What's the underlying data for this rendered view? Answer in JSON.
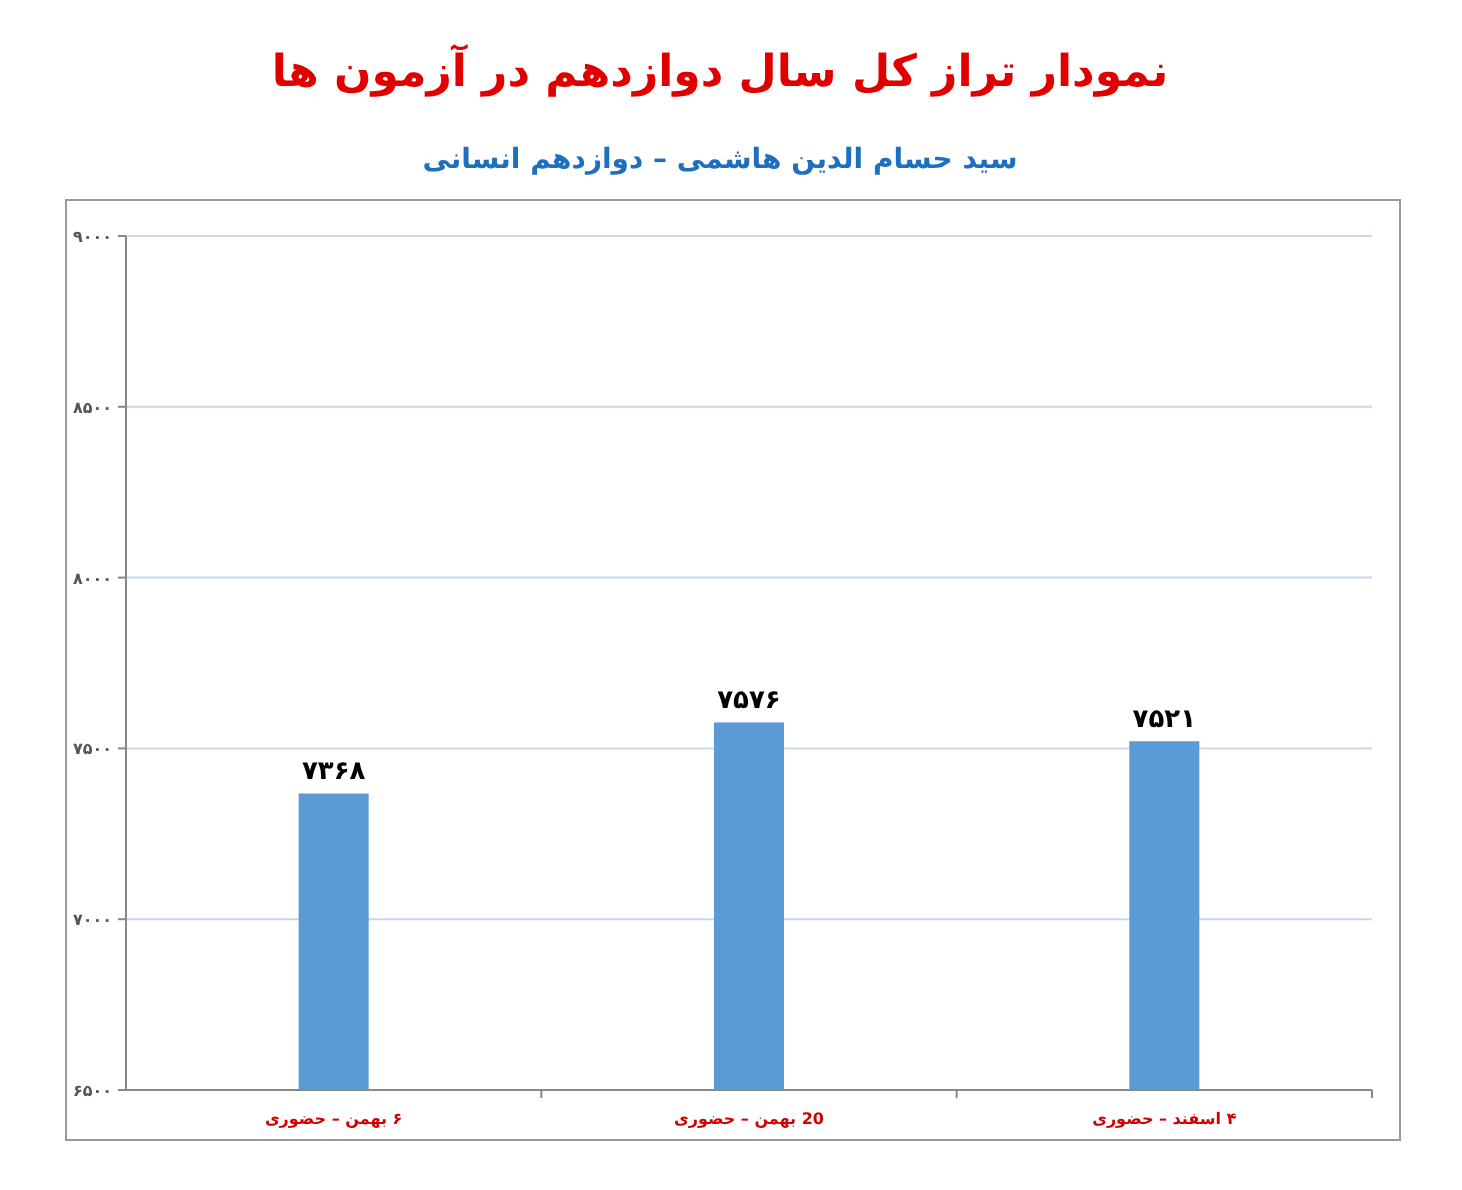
{
  "chart_data": {
    "type": "bar",
    "title": "نمودار تراز کل سال دوازدهم در آزمون ها",
    "subtitle": "سید حسام الدین هاشمی – دوازدهم انسانی",
    "categories": [
      "۶ بهمن – حضوری",
      "20 بهمن – حضوری",
      "۴ اسفند – حضوری"
    ],
    "values": [
      7368,
      7576,
      7521
    ],
    "value_labels": [
      "۷۳۶۸",
      "۷۵۷۶",
      "۷۵۲۱"
    ],
    "color": "#5b9bd5",
    "ylim": [
      6500,
      9000
    ],
    "yticks": [
      {
        "value": 6500,
        "label": "۶۵۰۰"
      },
      {
        "value": 7000,
        "label": "۷۰۰۰"
      },
      {
        "value": 7500,
        "label": "۷۵۰۰"
      },
      {
        "value": 8000,
        "label": "۸۰۰۰"
      },
      {
        "value": 8500,
        "label": "۸۵۰۰"
      },
      {
        "value": 9000,
        "label": "۹۰۰۰"
      }
    ],
    "grid": "y"
  }
}
